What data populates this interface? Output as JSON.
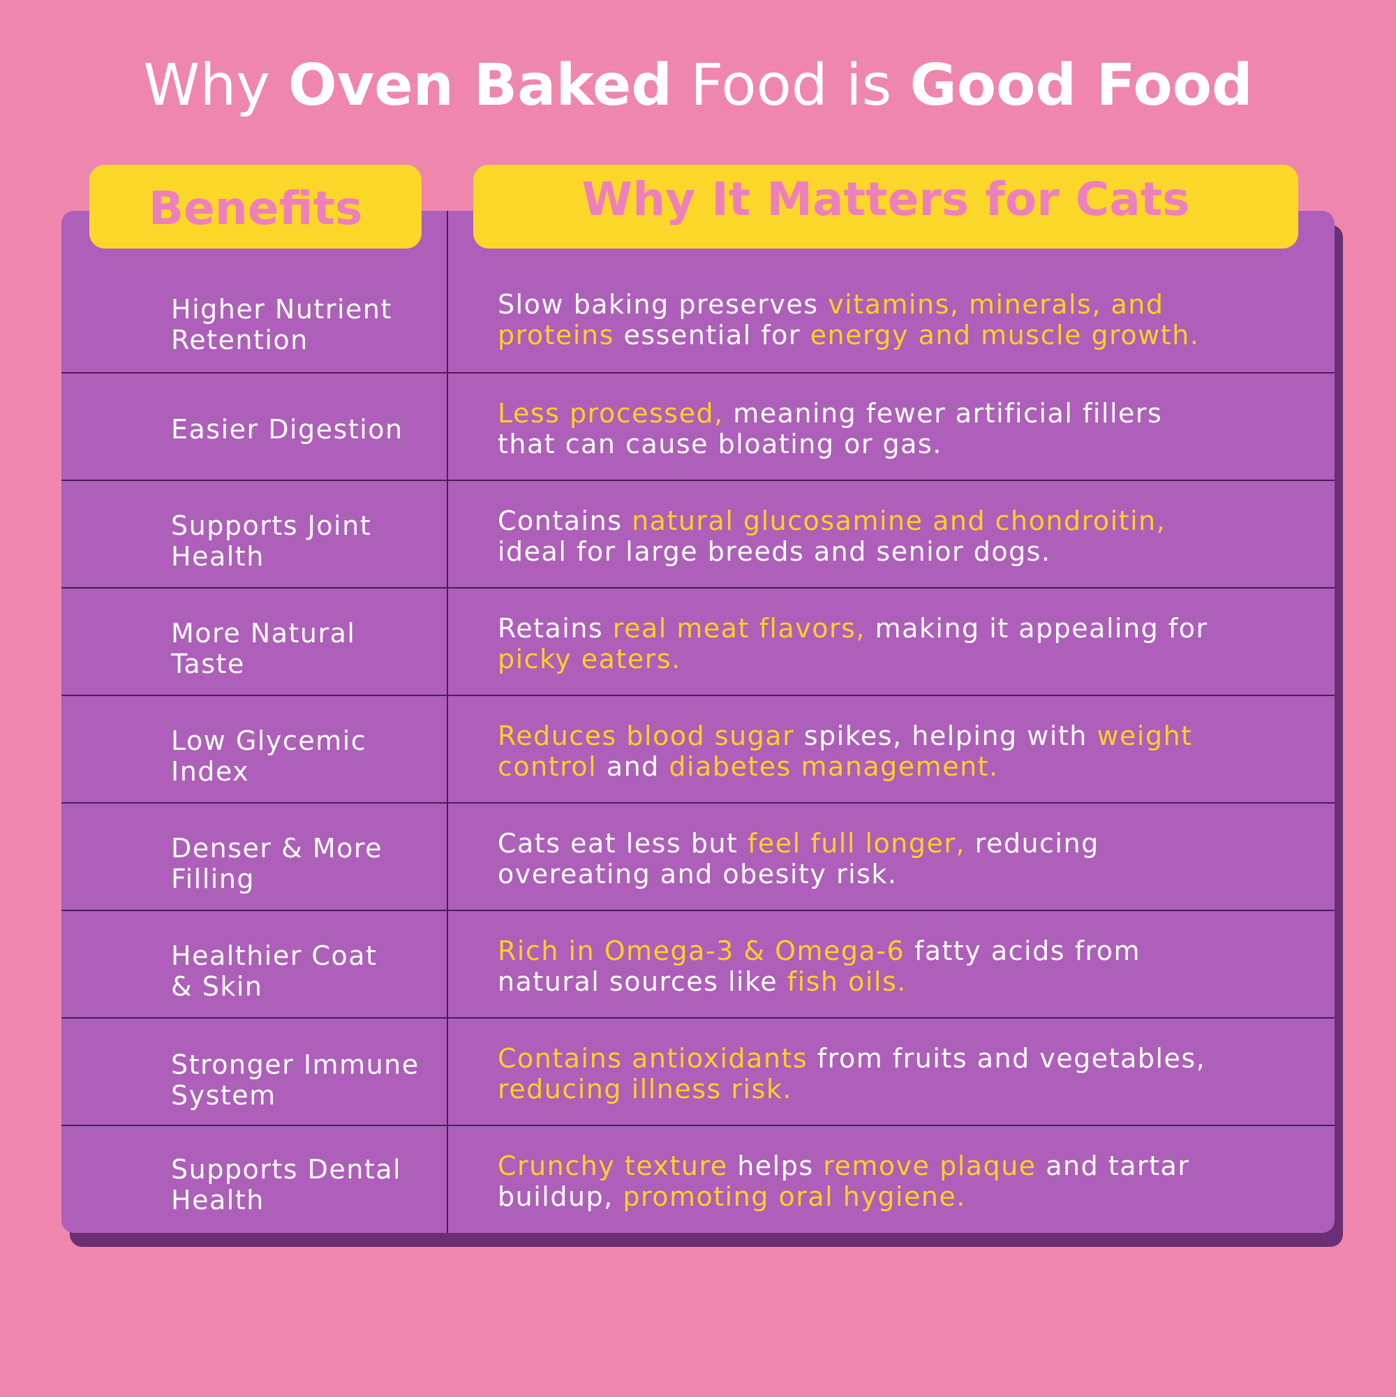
{
  "title": {
    "w1": "Why",
    "w2": "Oven Baked",
    "w3": "Food is",
    "w4": "Good Food"
  },
  "headers": {
    "benefits": "Benefits",
    "why": "Why It Matters for Cats"
  },
  "colors": {
    "background": "#ef86ad",
    "card": "#ad5fb9",
    "card_shadow": "#6a2f75",
    "header_fill": "#fbd72a",
    "header_text": "#ee7fbd",
    "highlight": "#ffcf24",
    "text": "#ffffff"
  },
  "rows": [
    {
      "benefit_l1": "Higher Nutrient",
      "benefit_l2": "Retention",
      "why": [
        {
          "t": "Slow baking preserves "
        },
        {
          "t": "vitamins, minerals, and",
          "h": true
        },
        {
          "t": "\n"
        },
        {
          "t": "proteins",
          "h": true
        },
        {
          "t": " essential for "
        },
        {
          "t": "energy and muscle growth.",
          "h": true
        }
      ]
    },
    {
      "benefit_l1": "Easier Digestion",
      "benefit_l2": "",
      "why": [
        {
          "t": "Less processed,",
          "h": true
        },
        {
          "t": " meaning fewer artificial fillers"
        },
        {
          "t": "\n"
        },
        {
          "t": "that can cause bloating or gas."
        }
      ]
    },
    {
      "benefit_l1": "Supports Joint",
      "benefit_l2": "Health",
      "why": [
        {
          "t": "Contains "
        },
        {
          "t": "natural glucosamine and chondroitin,",
          "h": true
        },
        {
          "t": "\n"
        },
        {
          "t": "ideal for large breeds and senior dogs."
        }
      ]
    },
    {
      "benefit_l1": "More Natural",
      "benefit_l2": "Taste",
      "why": [
        {
          "t": "Retains "
        },
        {
          "t": "real meat flavors,",
          "h": true
        },
        {
          "t": " making it appealing for"
        },
        {
          "t": "\n"
        },
        {
          "t": "picky eaters.",
          "h": true
        }
      ]
    },
    {
      "benefit_l1": "Low Glycemic",
      "benefit_l2": "Index",
      "why": [
        {
          "t": "Reduces blood sugar",
          "h": true
        },
        {
          "t": " spikes, helping with "
        },
        {
          "t": "weight",
          "h": true
        },
        {
          "t": "\n"
        },
        {
          "t": "control",
          "h": true
        },
        {
          "t": " and "
        },
        {
          "t": "diabetes management.",
          "h": true
        }
      ]
    },
    {
      "benefit_l1": "Denser & More",
      "benefit_l2": "Filling",
      "why": [
        {
          "t": "Cats eat less but "
        },
        {
          "t": "feel full longer,",
          "h": true
        },
        {
          "t": " reducing"
        },
        {
          "t": "\n"
        },
        {
          "t": "overeating and obesity risk."
        }
      ]
    },
    {
      "benefit_l1": "Healthier Coat",
      "benefit_l2": "& Skin",
      "why": [
        {
          "t": "Rich in Omega-3 & Omega-6",
          "h": true
        },
        {
          "t": " fatty acids from"
        },
        {
          "t": "\n"
        },
        {
          "t": "natural sources like "
        },
        {
          "t": "fish oils.",
          "h": true
        }
      ]
    },
    {
      "benefit_l1": "Stronger Immune",
      "benefit_l2": "System",
      "why": [
        {
          "t": "Contains antioxidants",
          "h": true
        },
        {
          "t": " from fruits and vegetables,"
        },
        {
          "t": "\n"
        },
        {
          "t": "reducing illness risk.",
          "h": true
        }
      ]
    },
    {
      "benefit_l1": "Supports Dental",
      "benefit_l2": "Health",
      "why": [
        {
          "t": "Crunchy texture",
          "h": true
        },
        {
          "t": " helps "
        },
        {
          "t": "remove plaque",
          "h": true
        },
        {
          "t": " and tartar"
        },
        {
          "t": "\n"
        },
        {
          "t": "buildup, "
        },
        {
          "t": "promoting oral hygiene.",
          "h": true
        }
      ]
    }
  ]
}
